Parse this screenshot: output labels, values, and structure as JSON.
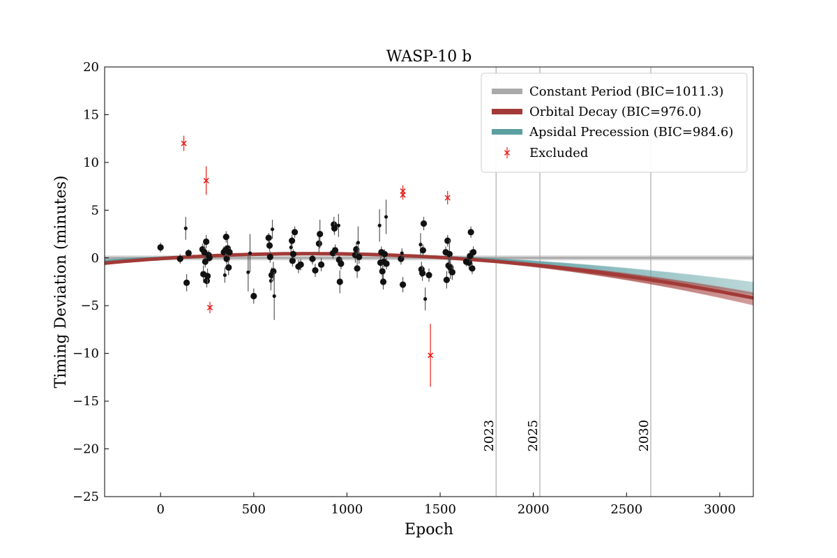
{
  "chart_data": {
    "type": "scatter",
    "title": "WASP-10 b",
    "xlabel": "Epoch",
    "ylabel": "Timing Deviation (minutes)",
    "xlim": [
      -300,
      3180
    ],
    "ylim": [
      -25,
      20
    ],
    "x_ticks": [
      0,
      500,
      1000,
      1500,
      2000,
      2500,
      3000
    ],
    "y_ticks": [
      -25,
      -20,
      -15,
      -10,
      -5,
      0,
      5,
      10,
      15,
      20
    ],
    "grid": false,
    "legend_position": "top-right",
    "year_markers": [
      {
        "epoch": 1800,
        "label": "2023"
      },
      {
        "epoch": 2035,
        "label": "2025"
      },
      {
        "epoch": 2630,
        "label": "2030"
      }
    ],
    "series": [
      {
        "name": "Constant Period (BIC=1011.3)",
        "kind": "model",
        "color": "#aaaaaa",
        "model": "constant",
        "params": {
          "c": 0
        }
      },
      {
        "name": "Orbital Decay (BIC=976.0)",
        "kind": "model",
        "color": "#a23a37",
        "model": "quadratic",
        "params": {
          "x0": 800,
          "y0": 0.45,
          "a": -8.2e-07
        }
      },
      {
        "name": "Apsidal Precession (BIC=984.6)",
        "kind": "model",
        "color": "#5b9fa0",
        "model": "quadratic",
        "params": {
          "x0": 800,
          "y0": 0.45,
          "a": -6.8e-07
        }
      },
      {
        "name": "Excluded",
        "kind": "excluded",
        "color": "#e8201a",
        "points": [
          {
            "x": 125,
            "y": 12.0,
            "err": 0.8
          },
          {
            "x": 245,
            "y": 8.1,
            "err": 1.5
          },
          {
            "x": 265,
            "y": -5.2,
            "err": 0.6
          },
          {
            "x": 1300,
            "y": 7.0,
            "err": 0.6
          },
          {
            "x": 1300,
            "y": 6.6,
            "err": 0.5
          },
          {
            "x": 1448,
            "y": -10.2,
            "err": 3.3
          },
          {
            "x": 1540,
            "y": 6.3,
            "err": 0.7
          }
        ]
      }
    ],
    "observed": [
      {
        "x": 0,
        "y": 1.1,
        "err": 0.5,
        "big": true
      },
      {
        "x": 105,
        "y": -0.1,
        "err": 0.5,
        "big": true
      },
      {
        "x": 135,
        "y": 3.1,
        "err": 1.2,
        "big": false
      },
      {
        "x": 140,
        "y": -2.6,
        "err": 0.9,
        "big": true
      },
      {
        "x": 150,
        "y": 0.5,
        "err": 0.4,
        "big": true
      },
      {
        "x": 225,
        "y": 0.9,
        "err": 0.6,
        "big": true
      },
      {
        "x": 230,
        "y": -1.7,
        "err": 0.9,
        "big": true
      },
      {
        "x": 235,
        "y": 0.6,
        "err": 1.2,
        "big": true
      },
      {
        "x": 240,
        "y": -0.4,
        "err": 0.6,
        "big": true
      },
      {
        "x": 245,
        "y": 1.7,
        "err": 0.7,
        "big": true
      },
      {
        "x": 248,
        "y": -2.4,
        "err": 0.7,
        "big": true
      },
      {
        "x": 252,
        "y": -1.9,
        "err": 0.8,
        "big": true
      },
      {
        "x": 258,
        "y": 0.3,
        "err": 0.5,
        "big": true
      },
      {
        "x": 262,
        "y": 0.0,
        "err": 0.4,
        "big": true
      },
      {
        "x": 340,
        "y": 0.6,
        "err": 0.6,
        "big": true
      },
      {
        "x": 345,
        "y": -1.8,
        "err": 0.8,
        "big": false
      },
      {
        "x": 348,
        "y": 0.8,
        "err": 0.5,
        "big": true
      },
      {
        "x": 352,
        "y": 2.2,
        "err": 0.6,
        "big": true
      },
      {
        "x": 355,
        "y": -0.1,
        "err": 0.6,
        "big": true
      },
      {
        "x": 360,
        "y": 1.0,
        "err": 0.9,
        "big": true
      },
      {
        "x": 365,
        "y": -1.0,
        "err": 0.8,
        "big": true
      },
      {
        "x": 370,
        "y": 0.6,
        "err": 0.5,
        "big": true
      },
      {
        "x": 470,
        "y": -1.5,
        "err": 2.0,
        "big": false
      },
      {
        "x": 480,
        "y": 0.5,
        "err": 2.0,
        "big": false
      },
      {
        "x": 500,
        "y": -4.0,
        "err": 0.8,
        "big": true
      },
      {
        "x": 580,
        "y": 2.1,
        "err": 0.5,
        "big": true
      },
      {
        "x": 585,
        "y": 1.3,
        "err": 0.6,
        "big": true
      },
      {
        "x": 588,
        "y": 0.1,
        "err": 0.6,
        "big": true
      },
      {
        "x": 592,
        "y": -2.4,
        "err": 1.0,
        "big": false
      },
      {
        "x": 596,
        "y": -1.8,
        "err": 0.8,
        "big": true
      },
      {
        "x": 600,
        "y": 3.0,
        "err": 1.0,
        "big": false
      },
      {
        "x": 605,
        "y": -1.4,
        "err": 1.0,
        "big": true
      },
      {
        "x": 610,
        "y": -4.0,
        "err": 2.5,
        "big": false
      },
      {
        "x": 700,
        "y": 1.1,
        "err": 0.6,
        "big": false
      },
      {
        "x": 705,
        "y": 1.8,
        "err": 0.6,
        "big": true
      },
      {
        "x": 708,
        "y": -0.3,
        "err": 0.6,
        "big": true
      },
      {
        "x": 712,
        "y": 0.4,
        "err": 0.5,
        "big": true
      },
      {
        "x": 720,
        "y": 2.7,
        "err": 0.6,
        "big": true
      },
      {
        "x": 740,
        "y": -0.9,
        "err": 0.7,
        "big": true
      },
      {
        "x": 752,
        "y": -0.7,
        "err": 0.6,
        "big": true
      },
      {
        "x": 815,
        "y": -0.1,
        "err": 0.6,
        "big": true
      },
      {
        "x": 830,
        "y": -1.3,
        "err": 0.7,
        "big": true
      },
      {
        "x": 850,
        "y": 1.5,
        "err": 1.0,
        "big": true
      },
      {
        "x": 855,
        "y": 2.5,
        "err": 1.5,
        "big": true
      },
      {
        "x": 862,
        "y": -0.7,
        "err": 0.7,
        "big": true
      },
      {
        "x": 925,
        "y": 0.5,
        "err": 0.6,
        "big": true
      },
      {
        "x": 930,
        "y": 3.5,
        "err": 0.8,
        "big": true
      },
      {
        "x": 933,
        "y": 3.1,
        "err": 0.7,
        "big": true
      },
      {
        "x": 937,
        "y": 0.8,
        "err": 0.6,
        "big": true
      },
      {
        "x": 955,
        "y": 3.4,
        "err": 1.2,
        "big": false
      },
      {
        "x": 958,
        "y": -0.2,
        "err": 0.6,
        "big": true
      },
      {
        "x": 962,
        "y": -2.5,
        "err": 1.2,
        "big": true
      },
      {
        "x": 968,
        "y": -0.6,
        "err": 0.6,
        "big": true
      },
      {
        "x": 1045,
        "y": 0.3,
        "err": 0.8,
        "big": true
      },
      {
        "x": 1050,
        "y": 0.9,
        "err": 0.7,
        "big": true
      },
      {
        "x": 1055,
        "y": -1.1,
        "err": 1.0,
        "big": true
      },
      {
        "x": 1060,
        "y": 1.6,
        "err": 1.7,
        "big": false
      },
      {
        "x": 1065,
        "y": 0.1,
        "err": 0.7,
        "big": true
      },
      {
        "x": 1175,
        "y": 3.4,
        "err": 1.7,
        "big": false
      },
      {
        "x": 1180,
        "y": -0.5,
        "err": 0.6,
        "big": true
      },
      {
        "x": 1185,
        "y": 0.6,
        "err": 0.6,
        "big": true
      },
      {
        "x": 1190,
        "y": -1.4,
        "err": 0.9,
        "big": true
      },
      {
        "x": 1195,
        "y": -2.5,
        "err": 0.8,
        "big": true
      },
      {
        "x": 1198,
        "y": -0.4,
        "err": 0.6,
        "big": true
      },
      {
        "x": 1202,
        "y": 0.4,
        "err": 0.5,
        "big": true
      },
      {
        "x": 1210,
        "y": 4.3,
        "err": 1.8,
        "big": false
      },
      {
        "x": 1212,
        "y": -0.6,
        "err": 0.6,
        "big": true
      },
      {
        "x": 1290,
        "y": -0.1,
        "err": 0.6,
        "big": true
      },
      {
        "x": 1295,
        "y": 0.5,
        "err": 0.5,
        "big": false
      },
      {
        "x": 1300,
        "y": -2.8,
        "err": 0.8,
        "big": true
      },
      {
        "x": 1395,
        "y": 1.4,
        "err": 1.2,
        "big": false
      },
      {
        "x": 1400,
        "y": -1.2,
        "err": 0.8,
        "big": true
      },
      {
        "x": 1405,
        "y": -1.6,
        "err": 0.8,
        "big": true
      },
      {
        "x": 1408,
        "y": 0.8,
        "err": 0.6,
        "big": true
      },
      {
        "x": 1412,
        "y": 3.6,
        "err": 0.7,
        "big": true
      },
      {
        "x": 1420,
        "y": -4.3,
        "err": 1.2,
        "big": false
      },
      {
        "x": 1440,
        "y": -1.8,
        "err": 0.7,
        "big": true
      },
      {
        "x": 1530,
        "y": 0.6,
        "err": 0.6,
        "big": true
      },
      {
        "x": 1535,
        "y": -2.3,
        "err": 0.9,
        "big": true
      },
      {
        "x": 1540,
        "y": 1.8,
        "err": 0.6,
        "big": true
      },
      {
        "x": 1545,
        "y": -0.8,
        "err": 0.8,
        "big": true
      },
      {
        "x": 1550,
        "y": 0.4,
        "err": 1.5,
        "big": true
      },
      {
        "x": 1555,
        "y": -1.0,
        "err": 1.2,
        "big": true
      },
      {
        "x": 1565,
        "y": -1.5,
        "err": 0.8,
        "big": true
      },
      {
        "x": 1640,
        "y": -0.4,
        "err": 0.5,
        "big": true
      },
      {
        "x": 1655,
        "y": -0.5,
        "err": 0.7,
        "big": true
      },
      {
        "x": 1660,
        "y": 0.2,
        "err": 0.6,
        "big": true
      },
      {
        "x": 1665,
        "y": 2.7,
        "err": 0.6,
        "big": true
      },
      {
        "x": 1672,
        "y": -1.1,
        "err": 0.6,
        "big": true
      },
      {
        "x": 1678,
        "y": 0.6,
        "err": 0.6,
        "big": true
      }
    ]
  }
}
